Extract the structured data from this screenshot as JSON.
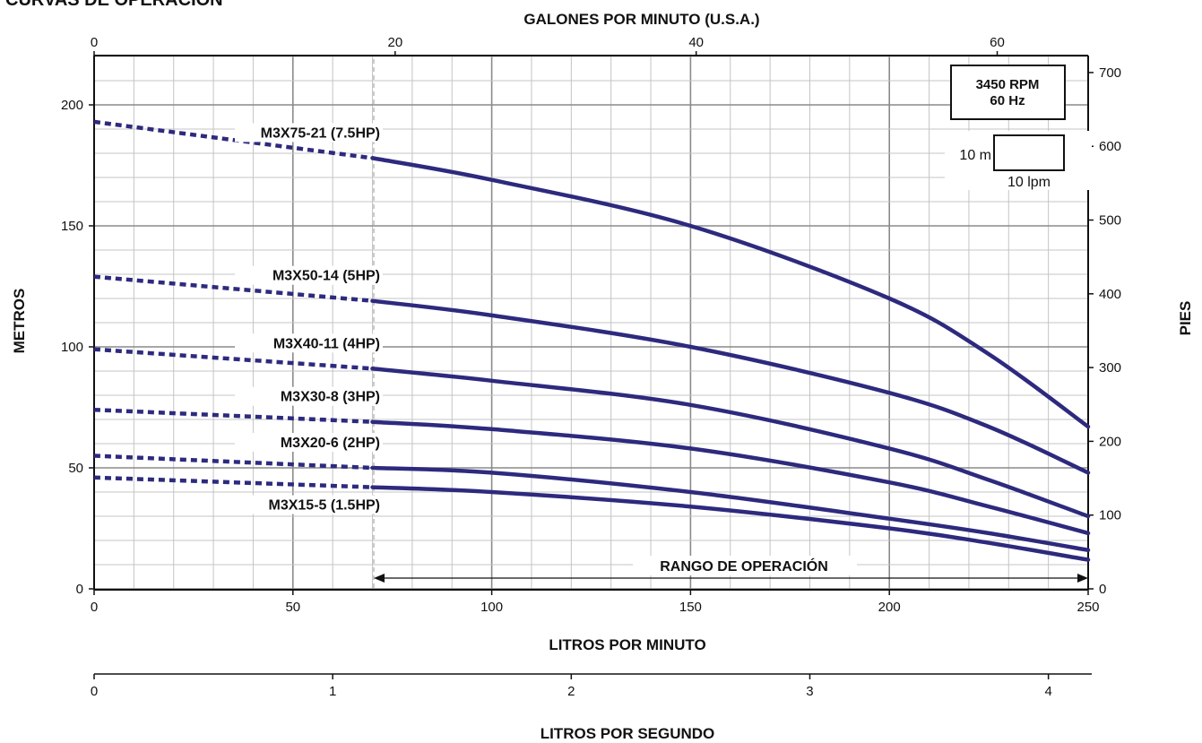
{
  "chart_data": {
    "type": "line",
    "title": "CURVAS DE OPERACIÓN",
    "top_axis": {
      "label": "GALONES POR MINUTO (U.S.A.)",
      "ticks": [
        "0",
        "20",
        "40",
        "60"
      ]
    },
    "xlabel": "LITROS POR MINUTO",
    "xlim": [
      0,
      250
    ],
    "x_ticks": [
      "0",
      "50",
      "100",
      "150",
      "200",
      "250"
    ],
    "ylabel": "METROS",
    "ylim": [
      0,
      220
    ],
    "y_ticks": [
      "0",
      "50",
      "100",
      "150",
      "200"
    ],
    "right_axis": {
      "label": "PIES",
      "ticks": [
        "0",
        "100",
        "200",
        "300",
        "400",
        "500",
        "600",
        "700"
      ]
    },
    "bottom_axis": {
      "label": "LITROS POR SEGUNDO",
      "ticks": [
        "0",
        "1",
        "2",
        "3",
        "4"
      ]
    },
    "grid": true,
    "operating_range": {
      "label": "RANGO DE OPERACIÓN",
      "x": [
        70,
        250
      ]
    },
    "legend_box": {
      "line1": "3450 RPM",
      "line2": "60 Hz"
    },
    "scale_box": {
      "height_label": "10 m",
      "width_label": "10 lpm"
    },
    "series_color": "#2d2a7e",
    "series": [
      {
        "name": "M3X75-21 (7.5HP)",
        "x": [
          0,
          70,
          100,
          150,
          200,
          225,
          250
        ],
        "values": [
          193,
          178,
          169,
          150,
          120,
          97,
          67
        ]
      },
      {
        "name": "M3X50-14 (5HP)",
        "x": [
          0,
          70,
          100,
          150,
          200,
          225,
          250
        ],
        "values": [
          129,
          119,
          113,
          100,
          81,
          67,
          48
        ]
      },
      {
        "name": "M3X40-11 (4HP)",
        "x": [
          0,
          70,
          100,
          150,
          200,
          225,
          250
        ],
        "values": [
          99,
          91,
          86,
          76,
          58,
          45,
          30
        ]
      },
      {
        "name": "M3X30-8 (3HP)",
        "x": [
          0,
          70,
          100,
          150,
          200,
          225,
          250
        ],
        "values": [
          74,
          69,
          66,
          58,
          44,
          34,
          23
        ]
      },
      {
        "name": "M3X20-6 (2HP)",
        "x": [
          0,
          70,
          100,
          150,
          200,
          225,
          250
        ],
        "values": [
          55,
          50,
          48,
          40,
          29,
          23,
          16
        ]
      },
      {
        "name": "M3X15-5 (1.5HP)",
        "x": [
          0,
          70,
          100,
          150,
          200,
          225,
          250
        ],
        "values": [
          46,
          42,
          40,
          34,
          25,
          19,
          12
        ]
      }
    ]
  }
}
